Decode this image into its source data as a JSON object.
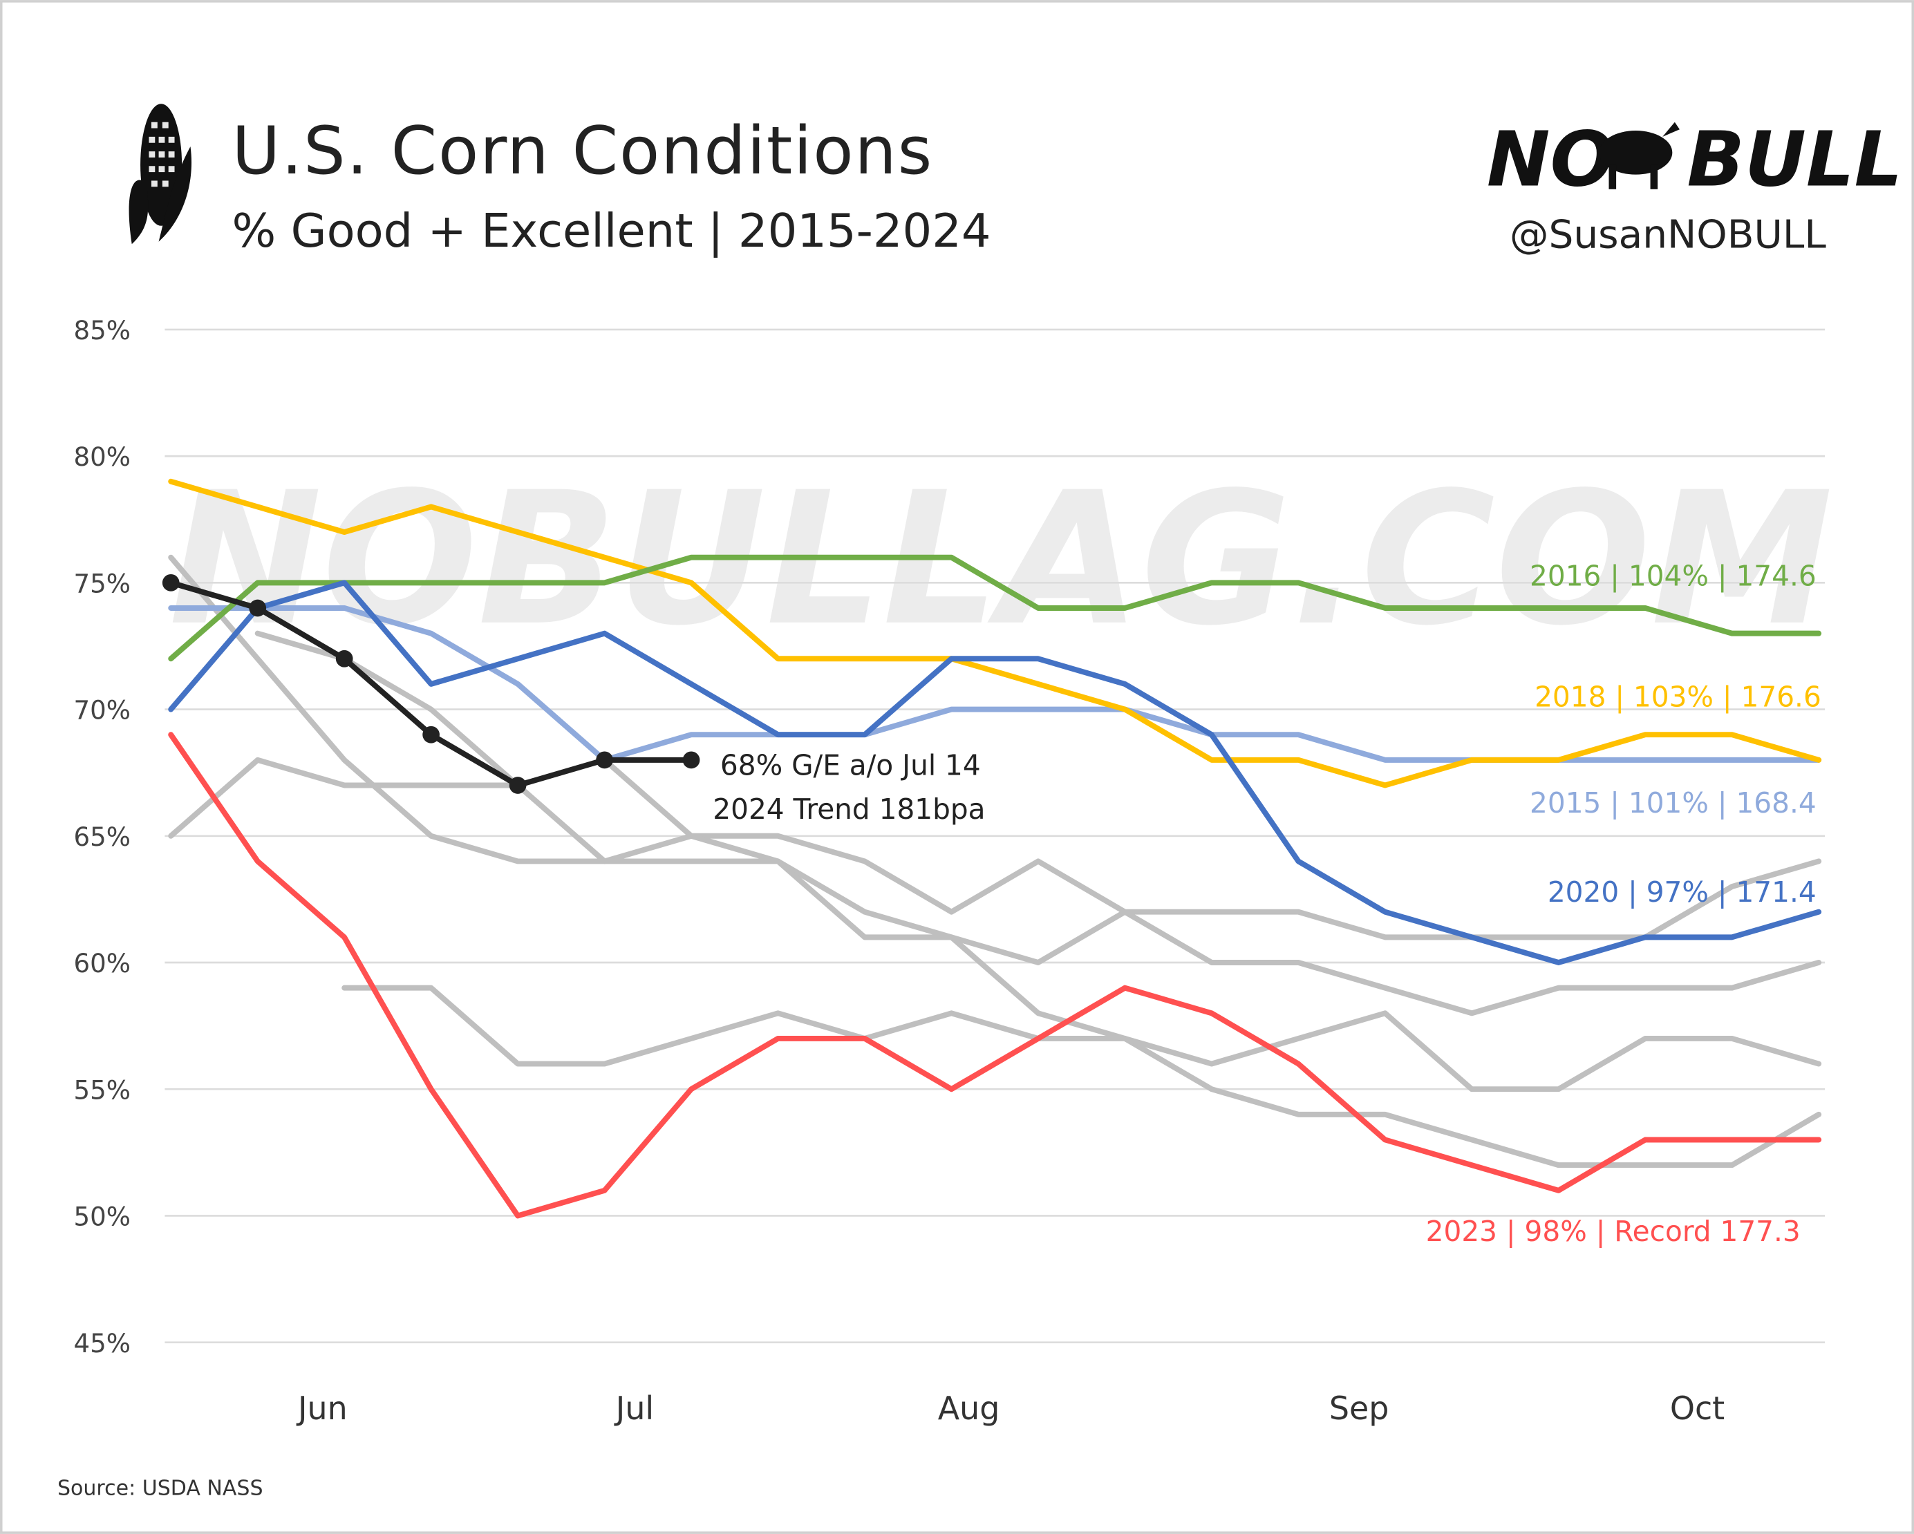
{
  "header": {
    "title": "U.S. Corn Conditions",
    "subtitle": "% Good + Excellent | 2015-2024",
    "logo_text": "NO BULL",
    "handle": "@SusanNOBULL",
    "watermark": "NOBULLAG.COM",
    "icon": "corn-icon"
  },
  "footer": {
    "source": "Source: USDA NASS"
  },
  "chart_data": {
    "type": "line",
    "title": "U.S. Corn Conditions",
    "subtitle": "% Good + Excellent | 2015-2024",
    "ylabel": "",
    "xlabel": "",
    "ylim": [
      45,
      85
    ],
    "yticks": [
      "85%",
      "80%",
      "75%",
      "70%",
      "65%",
      "60%",
      "55%",
      "50%",
      "45%"
    ],
    "xticks": [
      "Jun",
      "Jul",
      "Aug",
      "Sep",
      "Oct"
    ],
    "x_unit": "weekly report",
    "grid": "horizontal",
    "series": [
      {
        "key": "g1",
        "color": "#BFBFBF",
        "values": [
          null,
          73,
          72,
          70,
          67,
          64,
          65,
          65,
          64,
          62,
          64,
          62,
          60,
          60,
          59,
          58,
          59,
          59,
          59,
          60
        ]
      },
      {
        "key": "g2",
        "color": "#BFBFBF",
        "values": [
          65,
          68,
          67,
          67,
          67,
          68,
          65,
          64,
          62,
          61,
          60,
          62,
          62,
          62,
          61,
          61,
          61,
          61,
          63,
          64
        ]
      },
      {
        "key": "g3",
        "color": "#BFBFBF",
        "values": [
          76,
          72,
          68,
          65,
          64,
          64,
          64,
          64,
          61,
          61,
          58,
          57,
          55,
          54,
          54,
          53,
          52,
          52,
          52,
          54
        ]
      },
      {
        "key": "g4",
        "color": "#BFBFBF",
        "values": [
          null,
          null,
          59,
          59,
          56,
          56,
          57,
          58,
          57,
          58,
          57,
          57,
          56,
          57,
          58,
          55,
          55,
          57,
          57,
          56
        ]
      },
      {
        "key": "2015",
        "color": "#8FAADC",
        "values": [
          74,
          74,
          74,
          73,
          71,
          68,
          69,
          69,
          69,
          70,
          70,
          70,
          69,
          69,
          68,
          68,
          68,
          68,
          68,
          68
        ]
      },
      {
        "key": "2018",
        "color": "#FFC000",
        "values": [
          79,
          78,
          77,
          78,
          77,
          76,
          75,
          72,
          72,
          72,
          71,
          70,
          68,
          68,
          67,
          68,
          68,
          69,
          69,
          68
        ]
      },
      {
        "key": "2016",
        "color": "#70AD47",
        "values": [
          72,
          75,
          75,
          75,
          75,
          75,
          76,
          76,
          76,
          76,
          74,
          74,
          75,
          75,
          74,
          74,
          74,
          74,
          73,
          73
        ]
      },
      {
        "key": "2020",
        "color": "#4472C4",
        "values": [
          70,
          74,
          75,
          71,
          72,
          73,
          71,
          69,
          69,
          72,
          72,
          71,
          69,
          64,
          62,
          61,
          60,
          61,
          61,
          62
        ]
      },
      {
        "key": "2023",
        "color": "#FF5050",
        "values": [
          69,
          64,
          61,
          55,
          50,
          51,
          55,
          57,
          57,
          55,
          57,
          59,
          58,
          56,
          53,
          52,
          51,
          53,
          53,
          53
        ]
      },
      {
        "key": "2024",
        "color": "#222222",
        "markers": true,
        "values": [
          75,
          74,
          72,
          69,
          67,
          68,
          68
        ]
      }
    ],
    "annotations": {
      "y2016": "2016 | 104% | 174.6",
      "y2018": "2018 | 103% | 176.6",
      "y2015": "2015 | 101% | 168.4",
      "y2020": "2020 | 97% | 171.4",
      "y2023": "2023 | 98% | Record 177.3",
      "y2024_line1": "68% G/E a/o Jul 14",
      "y2024_line2": "2024 Trend 181bpa"
    }
  }
}
